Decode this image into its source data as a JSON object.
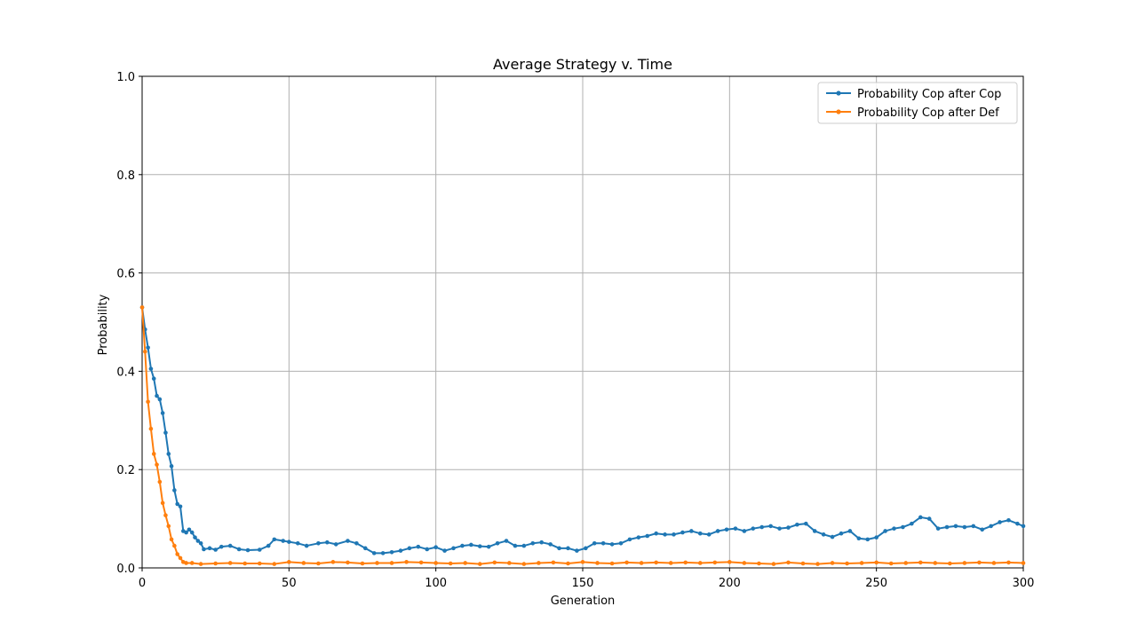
{
  "chart_data": {
    "type": "line",
    "title": "Average Strategy v. Time",
    "xlabel": "Generation",
    "ylabel": "Probability",
    "xlim": [
      0,
      300
    ],
    "ylim": [
      0,
      1.0
    ],
    "xticks": [
      0,
      50,
      100,
      150,
      200,
      250,
      300
    ],
    "xtick_labels": [
      "0",
      "50",
      "100",
      "150",
      "200",
      "250",
      "300"
    ],
    "yticks": [
      0.0,
      0.2,
      0.4,
      0.6,
      0.8,
      1.0
    ],
    "ytick_labels": [
      "0.0",
      "0.2",
      "0.4",
      "0.6",
      "0.8",
      "1.0"
    ],
    "grid": true,
    "legend_position": "top-right",
    "series": [
      {
        "name": "Probability Cop after Cop",
        "color": "#1f77b4",
        "marker": "circle",
        "points": [
          [
            0,
            0.53
          ],
          [
            1,
            0.485
          ],
          [
            2,
            0.448
          ],
          [
            3,
            0.405
          ],
          [
            4,
            0.385
          ],
          [
            5,
            0.35
          ],
          [
            6,
            0.343
          ],
          [
            7,
            0.315
          ],
          [
            8,
            0.275
          ],
          [
            9,
            0.232
          ],
          [
            10,
            0.207
          ],
          [
            11,
            0.158
          ],
          [
            12,
            0.13
          ],
          [
            13,
            0.125
          ],
          [
            14,
            0.075
          ],
          [
            15,
            0.072
          ],
          [
            16,
            0.078
          ],
          [
            17,
            0.072
          ],
          [
            18,
            0.062
          ],
          [
            19,
            0.055
          ],
          [
            20,
            0.05
          ],
          [
            21,
            0.038
          ],
          [
            23,
            0.04
          ],
          [
            25,
            0.037
          ],
          [
            27,
            0.043
          ],
          [
            30,
            0.045
          ],
          [
            33,
            0.038
          ],
          [
            36,
            0.036
          ],
          [
            40,
            0.037
          ],
          [
            43,
            0.045
          ],
          [
            45,
            0.058
          ],
          [
            48,
            0.055
          ],
          [
            50,
            0.053
          ],
          [
            53,
            0.05
          ],
          [
            56,
            0.045
          ],
          [
            60,
            0.05
          ],
          [
            63,
            0.052
          ],
          [
            66,
            0.048
          ],
          [
            70,
            0.055
          ],
          [
            73,
            0.05
          ],
          [
            76,
            0.04
          ],
          [
            79,
            0.03
          ],
          [
            82,
            0.03
          ],
          [
            85,
            0.032
          ],
          [
            88,
            0.035
          ],
          [
            91,
            0.04
          ],
          [
            94,
            0.043
          ],
          [
            97,
            0.038
          ],
          [
            100,
            0.042
          ],
          [
            103,
            0.035
          ],
          [
            106,
            0.04
          ],
          [
            109,
            0.045
          ],
          [
            112,
            0.047
          ],
          [
            115,
            0.044
          ],
          [
            118,
            0.043
          ],
          [
            121,
            0.05
          ],
          [
            124,
            0.055
          ],
          [
            127,
            0.045
          ],
          [
            130,
            0.045
          ],
          [
            133,
            0.05
          ],
          [
            136,
            0.052
          ],
          [
            139,
            0.048
          ],
          [
            142,
            0.04
          ],
          [
            145,
            0.04
          ],
          [
            148,
            0.035
          ],
          [
            151,
            0.04
          ],
          [
            154,
            0.05
          ],
          [
            157,
            0.05
          ],
          [
            160,
            0.048
          ],
          [
            163,
            0.05
          ],
          [
            166,
            0.058
          ],
          [
            169,
            0.062
          ],
          [
            172,
            0.065
          ],
          [
            175,
            0.07
          ],
          [
            178,
            0.068
          ],
          [
            181,
            0.068
          ],
          [
            184,
            0.072
          ],
          [
            187,
            0.075
          ],
          [
            190,
            0.07
          ],
          [
            193,
            0.068
          ],
          [
            196,
            0.075
          ],
          [
            199,
            0.078
          ],
          [
            202,
            0.08
          ],
          [
            205,
            0.075
          ],
          [
            208,
            0.08
          ],
          [
            211,
            0.083
          ],
          [
            214,
            0.085
          ],
          [
            217,
            0.08
          ],
          [
            220,
            0.082
          ],
          [
            223,
            0.088
          ],
          [
            226,
            0.09
          ],
          [
            229,
            0.075
          ],
          [
            232,
            0.068
          ],
          [
            235,
            0.063
          ],
          [
            238,
            0.07
          ],
          [
            241,
            0.075
          ],
          [
            244,
            0.06
          ],
          [
            247,
            0.058
          ],
          [
            250,
            0.062
          ],
          [
            253,
            0.075
          ],
          [
            256,
            0.08
          ],
          [
            259,
            0.083
          ],
          [
            262,
            0.09
          ],
          [
            265,
            0.103
          ],
          [
            268,
            0.1
          ],
          [
            271,
            0.08
          ],
          [
            274,
            0.083
          ],
          [
            277,
            0.085
          ],
          [
            280,
            0.083
          ],
          [
            283,
            0.085
          ],
          [
            286,
            0.078
          ],
          [
            289,
            0.085
          ],
          [
            292,
            0.093
          ],
          [
            295,
            0.097
          ],
          [
            298,
            0.09
          ],
          [
            300,
            0.085
          ]
        ]
      },
      {
        "name": "Probability Cop after Def",
        "color": "#ff7f0e",
        "marker": "circle",
        "points": [
          [
            0,
            0.53
          ],
          [
            1,
            0.44
          ],
          [
            2,
            0.338
          ],
          [
            3,
            0.283
          ],
          [
            4,
            0.232
          ],
          [
            5,
            0.21
          ],
          [
            6,
            0.175
          ],
          [
            7,
            0.132
          ],
          [
            8,
            0.107
          ],
          [
            9,
            0.085
          ],
          [
            10,
            0.058
          ],
          [
            11,
            0.045
          ],
          [
            12,
            0.028
          ],
          [
            13,
            0.02
          ],
          [
            14,
            0.012
          ],
          [
            15,
            0.01
          ],
          [
            17,
            0.01
          ],
          [
            20,
            0.008
          ],
          [
            25,
            0.009
          ],
          [
            30,
            0.01
          ],
          [
            35,
            0.009
          ],
          [
            40,
            0.009
          ],
          [
            45,
            0.008
          ],
          [
            50,
            0.012
          ],
          [
            55,
            0.01
          ],
          [
            60,
            0.009
          ],
          [
            65,
            0.012
          ],
          [
            70,
            0.011
          ],
          [
            75,
            0.009
          ],
          [
            80,
            0.01
          ],
          [
            85,
            0.01
          ],
          [
            90,
            0.012
          ],
          [
            95,
            0.011
          ],
          [
            100,
            0.01
          ],
          [
            105,
            0.009
          ],
          [
            110,
            0.01
          ],
          [
            115,
            0.008
          ],
          [
            120,
            0.011
          ],
          [
            125,
            0.01
          ],
          [
            130,
            0.008
          ],
          [
            135,
            0.01
          ],
          [
            140,
            0.011
          ],
          [
            145,
            0.009
          ],
          [
            150,
            0.012
          ],
          [
            155,
            0.01
          ],
          [
            160,
            0.009
          ],
          [
            165,
            0.011
          ],
          [
            170,
            0.01
          ],
          [
            175,
            0.011
          ],
          [
            180,
            0.01
          ],
          [
            185,
            0.011
          ],
          [
            190,
            0.01
          ],
          [
            195,
            0.011
          ],
          [
            200,
            0.012
          ],
          [
            205,
            0.01
          ],
          [
            210,
            0.009
          ],
          [
            215,
            0.008
          ],
          [
            220,
            0.011
          ],
          [
            225,
            0.009
          ],
          [
            230,
            0.008
          ],
          [
            235,
            0.01
          ],
          [
            240,
            0.009
          ],
          [
            245,
            0.01
          ],
          [
            250,
            0.011
          ],
          [
            255,
            0.009
          ],
          [
            260,
            0.01
          ],
          [
            265,
            0.011
          ],
          [
            270,
            0.01
          ],
          [
            275,
            0.009
          ],
          [
            280,
            0.01
          ],
          [
            285,
            0.011
          ],
          [
            290,
            0.01
          ],
          [
            295,
            0.011
          ],
          [
            300,
            0.01
          ]
        ]
      }
    ]
  }
}
